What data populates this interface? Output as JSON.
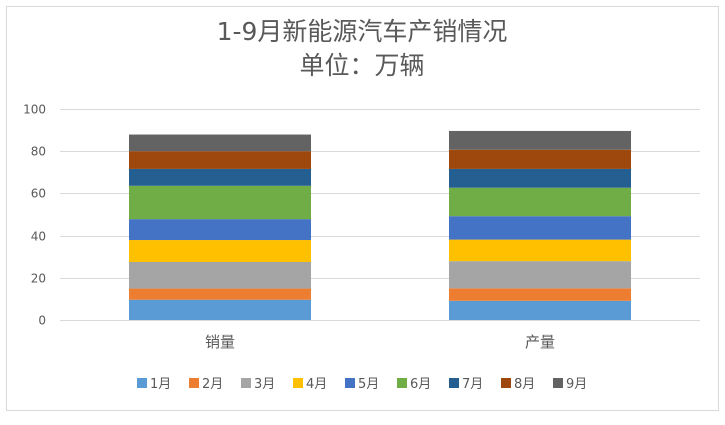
{
  "chart_data": {
    "type": "bar",
    "stacked": true,
    "title": "1-9月新能源汽车产销情况",
    "subtitle": "单位：万辆",
    "categories": [
      "销量",
      "产量"
    ],
    "ylim": [
      0,
      100
    ],
    "yticks": [
      0,
      20,
      40,
      60,
      80,
      100
    ],
    "grid": true,
    "legend_position": "bottom",
    "series": [
      {
        "name": "1月",
        "color": "#5B9BD5",
        "values": [
          9.6,
          9.1
        ]
      },
      {
        "name": "2月",
        "color": "#ED7D31",
        "values": [
          5.3,
          5.9
        ]
      },
      {
        "name": "3月",
        "color": "#A5A5A5",
        "values": [
          12.6,
          12.9
        ]
      },
      {
        "name": "4月",
        "color": "#FFC000",
        "values": [
          10.4,
          10.2
        ]
      },
      {
        "name": "5月",
        "color": "#4472C4",
        "values": [
          9.9,
          11.1
        ]
      },
      {
        "name": "6月",
        "color": "#70AD47",
        "values": [
          15.8,
          13.5
        ]
      },
      {
        "name": "7月",
        "color": "#255E91",
        "values": [
          8.0,
          8.9
        ]
      },
      {
        "name": "8月",
        "color": "#9E480E",
        "values": [
          8.4,
          9.1
        ]
      },
      {
        "name": "9月",
        "color": "#636363",
        "values": [
          7.9,
          8.9
        ]
      }
    ]
  }
}
